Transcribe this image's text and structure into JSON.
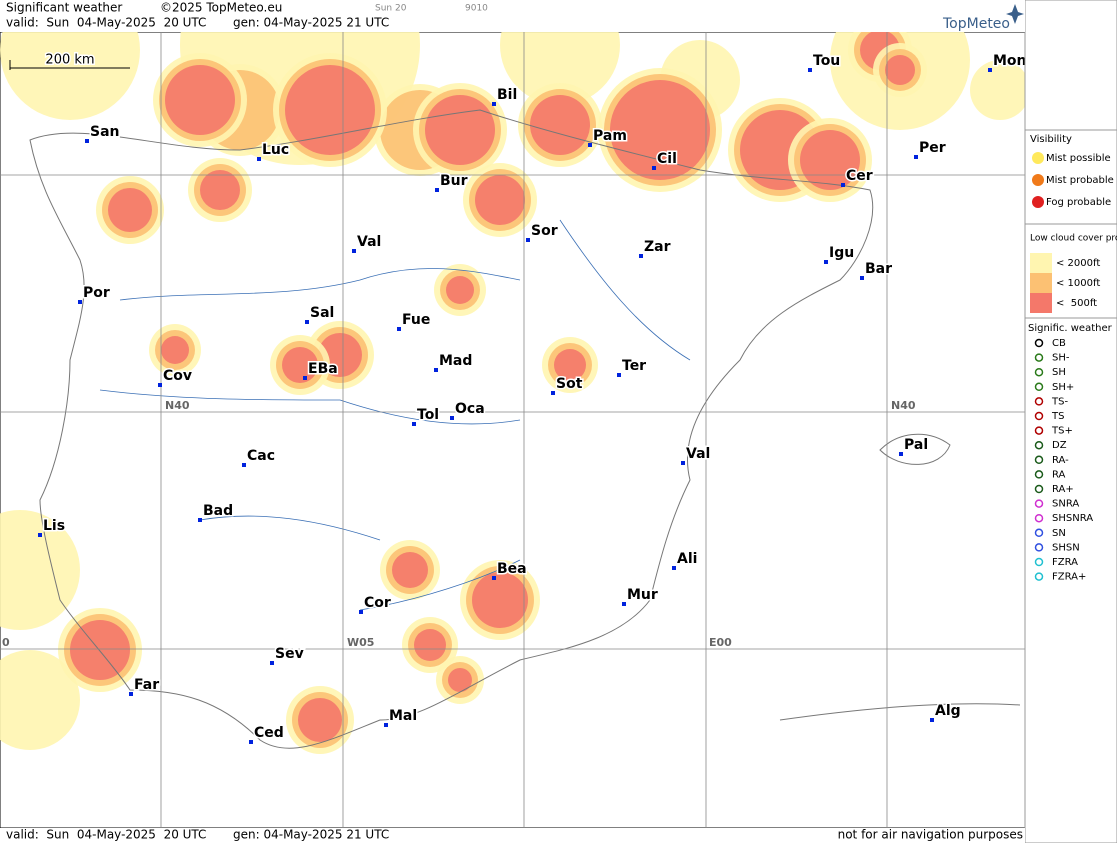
{
  "header": {
    "title": "Significant weather",
    "copyright": "©2025 TopMeteo.eu",
    "run": "Sun 20",
    "code": "9010",
    "valid": "valid:  Sun  04-May-2025  20 UTC",
    "gen": "gen: 04-May-2025 21 UTC",
    "logo": "TopMeteo"
  },
  "scale": "200 km",
  "grid_labels": [
    "N40",
    "N40",
    "W05",
    "E00",
    "0"
  ],
  "cities": [
    {
      "label": "San"
    },
    {
      "label": "Luc"
    },
    {
      "label": "Bil"
    },
    {
      "label": "Pam"
    },
    {
      "label": "Cil"
    },
    {
      "label": "Tou"
    },
    {
      "label": "Mon"
    },
    {
      "label": "Per"
    },
    {
      "label": "Cer"
    },
    {
      "label": "Bur"
    },
    {
      "label": "Sor"
    },
    {
      "label": "Zar"
    },
    {
      "label": "Igu"
    },
    {
      "label": "Bar"
    },
    {
      "label": "Val"
    },
    {
      "label": "Por"
    },
    {
      "label": "Sal"
    },
    {
      "label": "Fue"
    },
    {
      "label": "Mad"
    },
    {
      "label": "Cov"
    },
    {
      "label": "EBa"
    },
    {
      "label": "Sot"
    },
    {
      "label": "Ter"
    },
    {
      "label": "Tol"
    },
    {
      "label": "Oca"
    },
    {
      "label": "Val"
    },
    {
      "label": "Pal"
    },
    {
      "label": "Cac"
    },
    {
      "label": "Bad"
    },
    {
      "label": "Lis"
    },
    {
      "label": "Bea"
    },
    {
      "label": "Ali"
    },
    {
      "label": "Mur"
    },
    {
      "label": "Cor"
    },
    {
      "label": "Sev"
    },
    {
      "label": "Far"
    },
    {
      "label": "Mal"
    },
    {
      "label": "Ced"
    },
    {
      "label": "Alg"
    }
  ],
  "legend": {
    "visibility": {
      "title": "Visibility",
      "items": [
        "Mist possible",
        "Mist probable",
        "Fog probable"
      ]
    },
    "low_cloud": {
      "title": "Low cloud cover probable",
      "items": [
        "< 2000ft",
        "< 1000ft",
        "<  500ft"
      ]
    },
    "weather": {
      "title": "Signific. weather",
      "items": [
        "CB",
        "SH-",
        "SH",
        "SH+",
        "TS-",
        "TS",
        "TS+",
        "DZ",
        "RA-",
        "RA",
        "RA+",
        "SNRA",
        "SHSNRA",
        "SN",
        "SHSN",
        "FZRA",
        "FZRA+"
      ]
    }
  },
  "footer": {
    "valid": "valid:  Sun  04-May-2025  20 UTC",
    "gen": "gen: 04-May-2025 21 UTC",
    "note": "not for air navigation purposes"
  }
}
